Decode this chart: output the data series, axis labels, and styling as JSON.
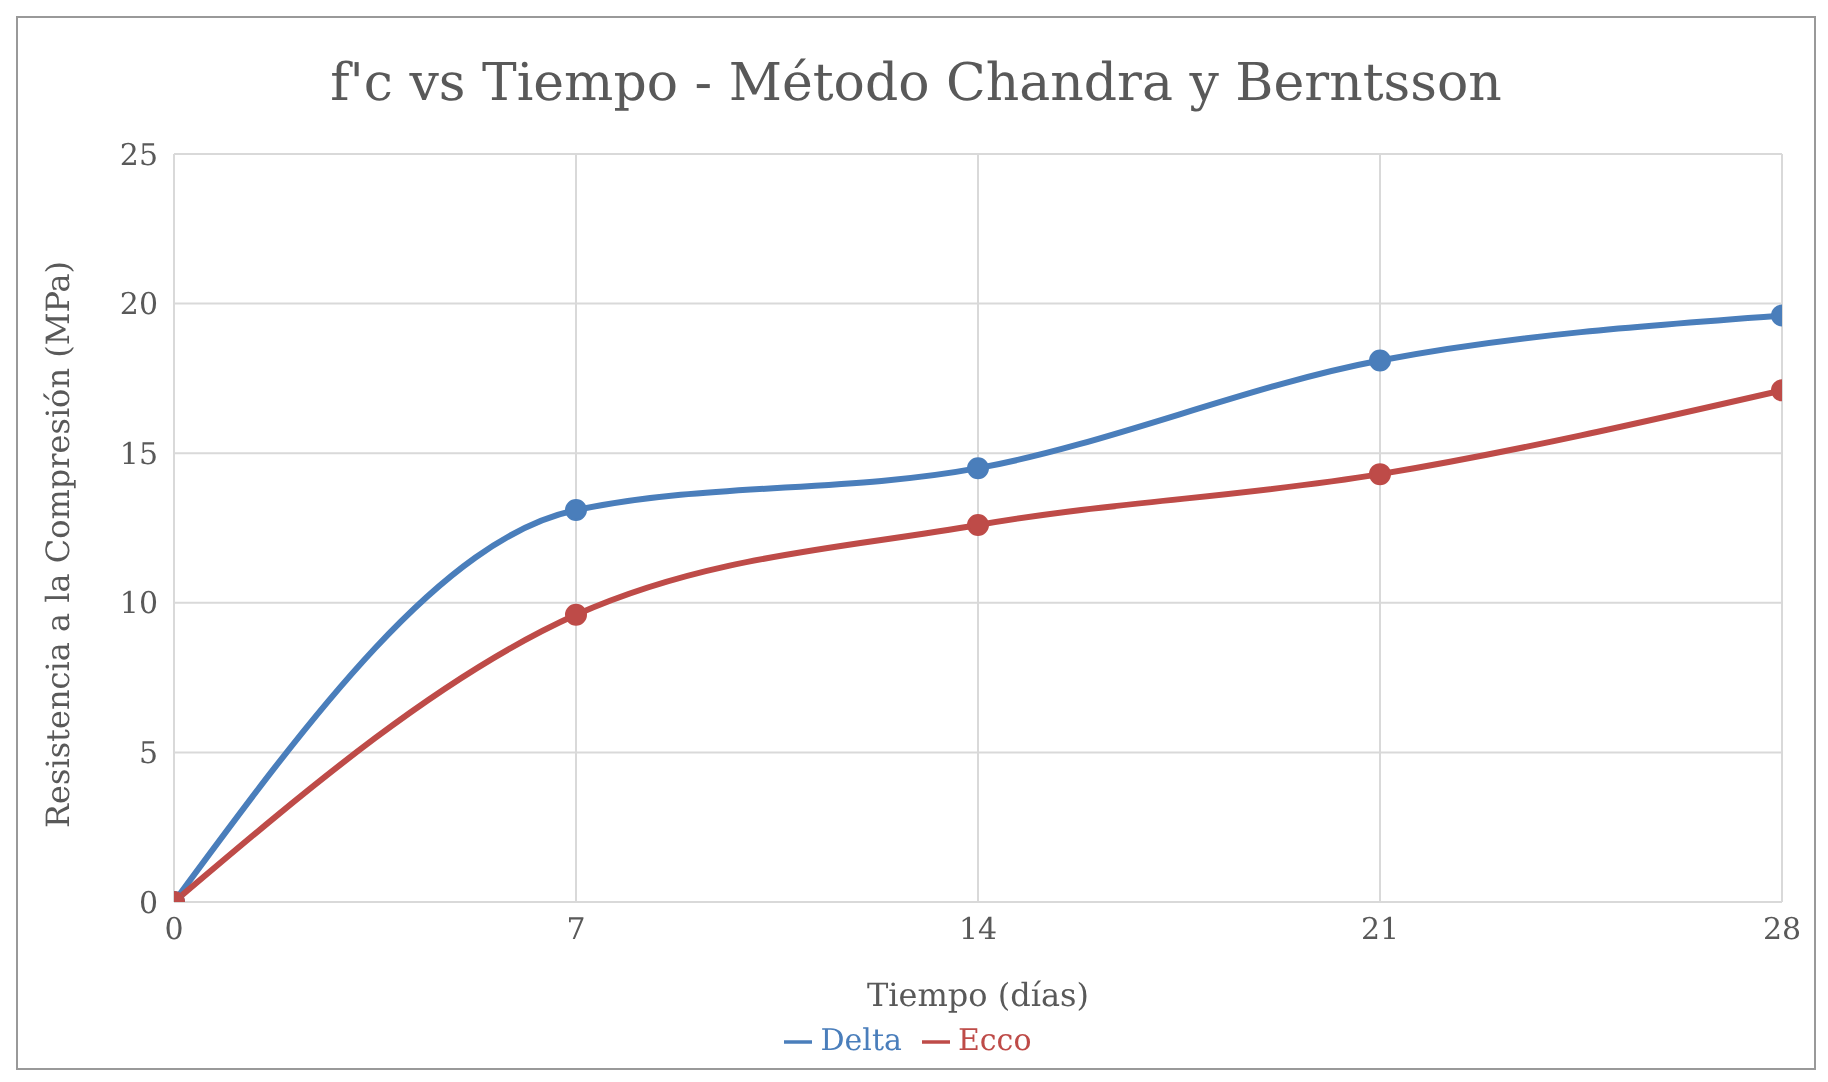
{
  "chart_data": {
    "type": "line",
    "title": "f'c vs Tiempo - Método Chandra y Berntsson",
    "xlabel": "Tiempo (días)",
    "ylabel": "Resistencia a la Compresión (MPa)",
    "x": [
      0,
      7,
      14,
      21,
      28
    ],
    "series": [
      {
        "name": "Delta",
        "color": "#4a7ebb",
        "values": [
          0,
          13.1,
          14.5,
          18.1,
          19.6
        ]
      },
      {
        "name": "Ecco",
        "color": "#be4b48",
        "values": [
          0,
          9.6,
          12.6,
          14.3,
          17.1
        ]
      }
    ],
    "xlim": [
      0,
      28
    ],
    "xticks": [
      0,
      7,
      14,
      21,
      28
    ],
    "ylim": [
      0,
      25
    ],
    "yticks": [
      0,
      5,
      10,
      15,
      20,
      25
    ],
    "grid": true,
    "legend": "bottom",
    "marker": "circle",
    "line_style": "solid"
  }
}
